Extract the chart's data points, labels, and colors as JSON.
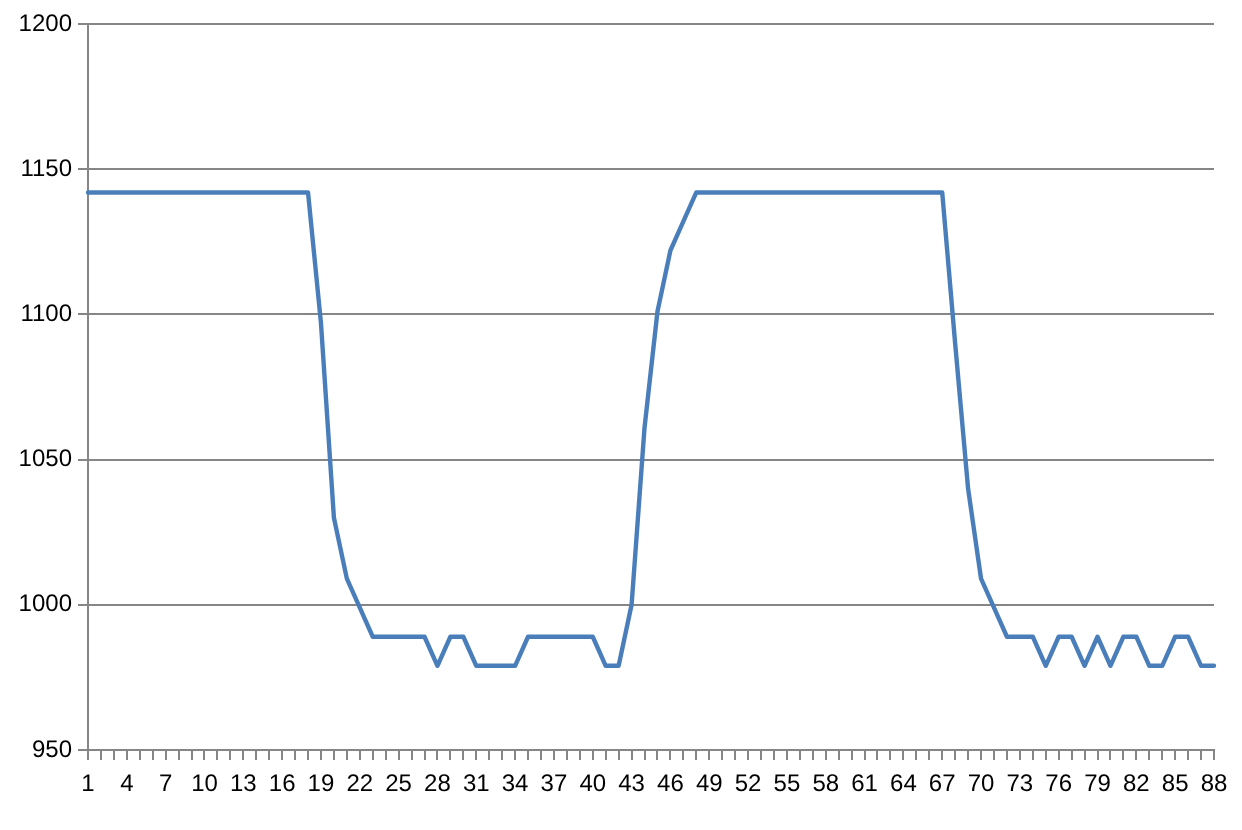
{
  "chart_data": {
    "type": "line",
    "categories": [
      "1",
      null,
      null,
      "4",
      null,
      null,
      "7",
      null,
      null,
      "10",
      null,
      null,
      "13",
      null,
      null,
      "16",
      null,
      null,
      "19",
      null,
      null,
      "22",
      null,
      null,
      "25",
      null,
      null,
      "28",
      null,
      null,
      "31",
      null,
      null,
      "34",
      null,
      null,
      "37",
      null,
      null,
      "40",
      null,
      null,
      "43",
      null,
      null,
      "46",
      null,
      null,
      "49",
      null,
      null,
      "52",
      null,
      null,
      "55",
      null,
      null,
      "58",
      null,
      null,
      "61",
      null,
      null,
      "64",
      null,
      null,
      "67",
      null,
      null,
      "70",
      null,
      null,
      "73",
      null,
      null,
      "76",
      null,
      null,
      "79",
      null,
      null,
      "82",
      null,
      null,
      "85",
      null,
      null,
      "88"
    ],
    "series": [
      {
        "color": "#4a7ebb",
        "values": [
          1142,
          1142,
          1142,
          1142,
          1142,
          1142,
          1142,
          1142,
          1142,
          1142,
          1142,
          1142,
          1142,
          1142,
          1142,
          1142,
          1142,
          1142,
          1097,
          1030,
          1009,
          999,
          989,
          989,
          989,
          989,
          989,
          979,
          989,
          989,
          979,
          979,
          979,
          979,
          989,
          989,
          989,
          989,
          989,
          989,
          979,
          979,
          1000,
          1061,
          1101,
          1122,
          1132,
          1142,
          1142,
          1142,
          1142,
          1142,
          1142,
          1142,
          1142,
          1142,
          1142,
          1142,
          1142,
          1142,
          1142,
          1142,
          1142,
          1142,
          1142,
          1142,
          1142,
          1090,
          1040,
          1009,
          999,
          989,
          989,
          989,
          979,
          989,
          989,
          979,
          989,
          979,
          989,
          989,
          979,
          979,
          989,
          989,
          979,
          979
        ]
      }
    ],
    "ylim": [
      950,
      1200
    ],
    "yticks": [
      950,
      1000,
      1050,
      1100,
      1150,
      1200
    ],
    "grid": "y",
    "marker": "none",
    "line_style": "solid"
  }
}
